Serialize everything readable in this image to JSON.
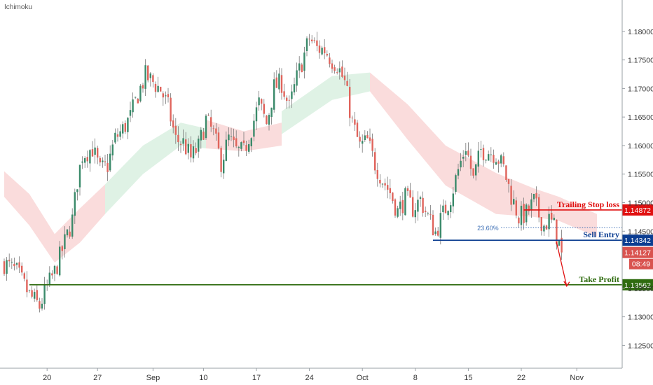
{
  "chart_data": {
    "type": "candlestick",
    "indicator": "Ichimoku",
    "y_axis": {
      "ticks": [
        "1.18000",
        "1.17500",
        "1.17000",
        "1.16500",
        "1.16000",
        "1.15500",
        "1.15000",
        "1.14500",
        "1.13500",
        "1.13000",
        "1.12500"
      ],
      "range": [
        1.121,
        1.1855
      ]
    },
    "x_axis": {
      "ticks": [
        "20",
        "27",
        "Sep",
        "10",
        "17",
        "24",
        "Oct",
        "8",
        "15",
        "22",
        "Nov"
      ]
    },
    "price_path": [
      [
        0,
        1.1394
      ],
      [
        5,
        1.1378
      ],
      [
        10,
        1.1338
      ],
      [
        14,
        1.1318
      ],
      [
        17,
        1.1352
      ],
      [
        20,
        1.1378
      ],
      [
        24,
        1.143
      ],
      [
        27,
        1.147
      ],
      [
        29,
        1.1538
      ],
      [
        31,
        1.1584
      ],
      [
        35,
        1.1595
      ],
      [
        38,
        1.1556
      ],
      [
        41,
        1.1565
      ],
      [
        44,
        1.1612
      ],
      [
        47,
        1.1628
      ],
      [
        50,
        1.165
      ],
      [
        53,
        1.169
      ],
      [
        56,
        1.1722
      ],
      [
        59,
        1.1711
      ],
      [
        62,
        1.1698
      ],
      [
        65,
        1.1667
      ],
      [
        68,
        1.161
      ],
      [
        71,
        1.1605
      ],
      [
        74,
        1.1578
      ],
      [
        77,
        1.1597
      ],
      [
        80,
        1.1645
      ],
      [
        83,
        1.162
      ],
      [
        86,
        1.1571
      ],
      [
        89,
        1.1612
      ],
      [
        92,
        1.159
      ],
      [
        95,
        1.1588
      ],
      [
        98,
        1.163
      ],
      [
        101,
        1.1674
      ],
      [
        104,
        1.1638
      ],
      [
        107,
        1.1702
      ],
      [
        110,
        1.171
      ],
      [
        113,
        1.1665
      ],
      [
        116,
        1.1718
      ],
      [
        119,
        1.176
      ],
      [
        121,
        1.1788
      ],
      [
        124,
        1.177
      ],
      [
        127,
        1.1768
      ],
      [
        130,
        1.175
      ],
      [
        132,
        1.1742
      ],
      [
        135,
        1.171
      ],
      [
        138,
        1.164
      ],
      [
        141,
        1.1598
      ],
      [
        144,
        1.1608
      ],
      [
        147,
        1.1568
      ],
      [
        150,
        1.154
      ],
      [
        153,
        1.1518
      ],
      [
        156,
        1.1484
      ],
      [
        159,
        1.1508
      ],
      [
        162,
        1.149
      ],
      [
        165,
        1.1505
      ],
      [
        168,
        1.1475
      ],
      [
        171,
        1.1448
      ],
      [
        174,
        1.148
      ],
      [
        177,
        1.151
      ],
      [
        180,
        1.1557
      ],
      [
        183,
        1.16
      ],
      [
        186,
        1.154
      ],
      [
        189,
        1.1592
      ],
      [
        192,
        1.159
      ],
      [
        195,
        1.1585
      ],
      [
        198,
        1.156
      ],
      [
        201,
        1.1512
      ],
      [
        204,
        1.1475
      ],
      [
        207,
        1.148
      ],
      [
        210,
        1.1502
      ],
      [
        212,
        1.1478
      ],
      [
        214,
        1.146
      ],
      [
        216,
        1.147
      ],
      [
        218,
        1.1458
      ],
      [
        221,
        1.1413
      ]
    ],
    "ichimoku_cloud": {
      "bearish_color": "#f5b2b2",
      "bullish_color": "#b9e3c6",
      "segments": [
        {
          "dir": "bearish",
          "points": [
            [
              0,
              1.1555,
              1.151
            ],
            [
              10,
              1.1515,
              1.146
            ],
            [
              20,
              1.1445,
              1.1395
            ],
            [
              30,
              1.149,
              1.143
            ],
            [
              40,
              1.1532,
              1.148
            ]
          ]
        },
        {
          "dir": "bullish",
          "points": [
            [
              40,
              1.1532,
              1.148
            ],
            [
              55,
              1.16,
              1.155
            ],
            [
              70,
              1.164,
              1.16
            ],
            [
              80,
              1.163,
              1.1595
            ]
          ]
        },
        {
          "dir": "bearish",
          "points": [
            [
              80,
              1.1645,
              1.1595
            ],
            [
              95,
              1.1625,
              1.159
            ],
            [
              110,
              1.164,
              1.16
            ]
          ]
        },
        {
          "dir": "bullish",
          "points": [
            [
              110,
              1.166,
              1.162
            ],
            [
              130,
              1.1722,
              1.168
            ],
            [
              145,
              1.1728,
              1.1695
            ]
          ]
        },
        {
          "dir": "bearish",
          "points": [
            [
              145,
              1.1728,
              1.1695
            ],
            [
              160,
              1.1672,
              1.161
            ],
            [
              175,
              1.16,
              1.153
            ],
            [
              195,
              1.1552,
              1.148
            ],
            [
              210,
              1.1525,
              1.1475
            ],
            [
              220,
              1.151,
              1.1468
            ],
            [
              235,
              1.148,
              1.144
            ]
          ]
        }
      ]
    },
    "levels": [
      {
        "name": "Trailing Stop loss",
        "price": "1.14872",
        "value": 1.14872,
        "color": "#e01010",
        "x_start": 206
      },
      {
        "name": "Sell Entry",
        "price": "1.14342",
        "value": 1.14342,
        "color": "#0b3d91",
        "x_start": 170
      },
      {
        "name": "Take Profit",
        "price": "1.13562",
        "value": 1.13562,
        "color": "#2e6b0e",
        "x_start": 10
      }
    ],
    "fibonacci": {
      "label": "23.60%",
      "value": 1.14562,
      "color": "#3d6fb5"
    },
    "current_price": {
      "price": "1.14127",
      "value": 1.14127,
      "countdown": "08:49",
      "color": "#d9534f"
    },
    "projection_arrow_color": "#e01010",
    "colors": {
      "up": "#3a8a6a",
      "down": "#e0645c",
      "wick": "#777777"
    }
  }
}
